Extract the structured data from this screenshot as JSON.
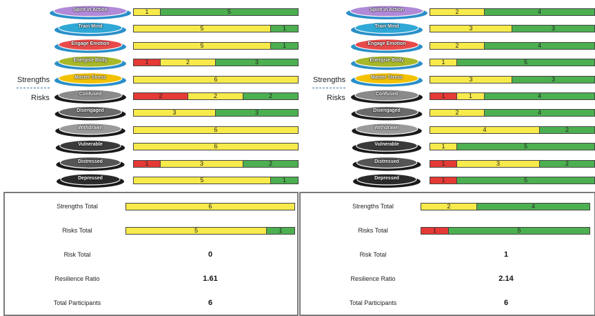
{
  "side_labels": {
    "strengths": "Strengths",
    "risks": "Risks"
  },
  "levels": [
    "Spirit in Action",
    "Train Mind",
    "Engage Emotion",
    "Energise Body",
    "Master Stress",
    "Confused",
    "Disengaged",
    "Withdrawn",
    "Vulnerable",
    "Distressed",
    "Depressed"
  ],
  "colors": {
    "red": "#e53935",
    "yellow": "#f7ea4b",
    "green": "#4caf50"
  },
  "chart_data": [
    {
      "type": "bar",
      "stacked": true,
      "orientation": "horizontal",
      "categories": [
        "Spirit in Action",
        "Train Mind",
        "Engage Emotion",
        "Energise Body",
        "Master Stress",
        "Confused",
        "Disengaged",
        "Withdrawn",
        "Vulnerable",
        "Distressed",
        "Depressed"
      ],
      "series": [
        {
          "color": "red",
          "values": [
            0,
            0,
            0,
            1,
            0,
            2,
            0,
            0,
            0,
            1,
            0
          ]
        },
        {
          "color": "yellow",
          "values": [
            1,
            5,
            5,
            2,
            6,
            2,
            3,
            6,
            6,
            3,
            5
          ]
        },
        {
          "color": "green",
          "values": [
            5,
            1,
            1,
            3,
            0,
            2,
            3,
            0,
            0,
            2,
            1
          ]
        }
      ],
      "xlim": [
        0,
        6
      ]
    },
    {
      "type": "bar",
      "stacked": true,
      "orientation": "horizontal",
      "categories": [
        "Spirit in Action",
        "Train Mind",
        "Engage Emotion",
        "Energise Body",
        "Master Stress",
        "Confused",
        "Disengaged",
        "Withdrawn",
        "Vulnerable",
        "Distressed",
        "Depressed"
      ],
      "series": [
        {
          "color": "red",
          "values": [
            0,
            0,
            0,
            0,
            0,
            1,
            0,
            0,
            0,
            1,
            1
          ]
        },
        {
          "color": "yellow",
          "values": [
            2,
            3,
            2,
            1,
            3,
            1,
            2,
            4,
            1,
            3,
            0
          ]
        },
        {
          "color": "green",
          "values": [
            4,
            3,
            4,
            5,
            3,
            4,
            4,
            2,
            5,
            2,
            5
          ]
        }
      ],
      "xlim": [
        0,
        6
      ]
    }
  ],
  "summary": [
    {
      "strengths_total_label": "Strengths Total",
      "strengths_total": {
        "red": 0,
        "yellow": 6,
        "green": 0
      },
      "risks_total_label": "Risks Total",
      "risks_total": {
        "red": 0,
        "yellow": 5,
        "green": 1
      },
      "risk_total_label": "Risk Total",
      "risk_total": "0",
      "resilience_ratio_label": "Resilience Ratio",
      "resilience_ratio": "1.61",
      "total_participants_label": "Total Participants",
      "total_participants": "6"
    },
    {
      "strengths_total_label": "Strengths Total",
      "strengths_total": {
        "red": 0,
        "yellow": 2,
        "green": 4
      },
      "risks_total_label": "Risks Total",
      "risks_total": {
        "red": 1,
        "yellow": 0,
        "green": 5
      },
      "risk_total_label": "Risk Total",
      "risk_total": "1",
      "resilience_ratio_label": "Resilience Ratio",
      "resilience_ratio": "2.14",
      "total_participants_label": "Total Participants",
      "total_participants": "6"
    }
  ]
}
